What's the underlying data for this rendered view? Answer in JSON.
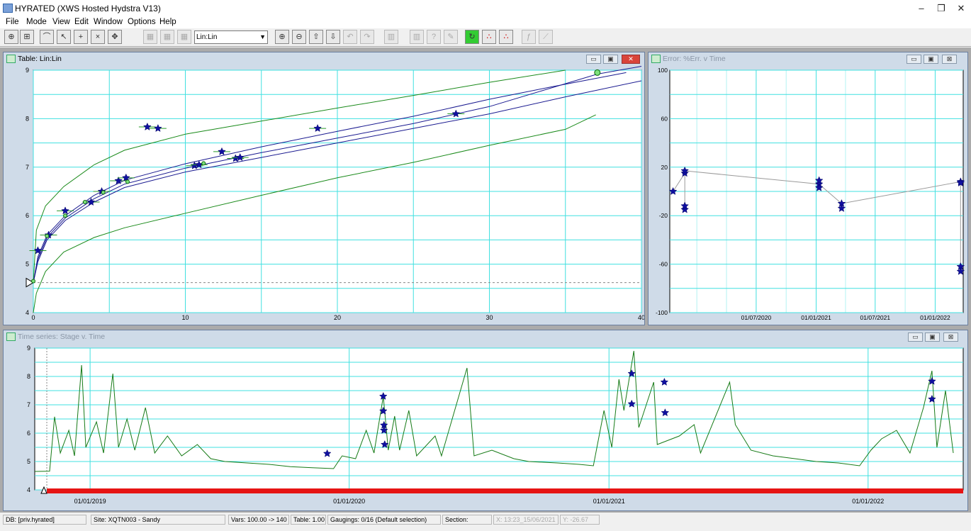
{
  "app": {
    "title": "HYRATED (XWS Hosted Hydstra V13)"
  },
  "window_controls": {
    "minimize": "–",
    "restore": "❐",
    "close": "✕"
  },
  "menu": [
    "File",
    "Mode",
    "View",
    "Edit",
    "Window",
    "Options",
    "Help"
  ],
  "toolbar": {
    "scale_select_value": "Lin:Lin",
    "icons": [
      "zoom-in-icon",
      "zoom-select-icon",
      "draw-curve-icon",
      "select-point-icon",
      "add-point-icon",
      "delete-point-icon",
      "move-point-icon",
      "table-icon",
      "table-2-icon",
      "table-3-icon",
      "magnify-plus-icon",
      "magnify-minus-icon",
      "pan-up-icon",
      "pan-down-icon",
      "undo-icon",
      "redo-icon",
      "grid-icon",
      "grid-2-icon",
      "help-icon",
      "tool-icon",
      "refresh-icon",
      "gaugings-icon",
      "gaugings-2-icon",
      "fit-icon",
      "fit-2-icon"
    ]
  },
  "windows": {
    "rating": {
      "title": "Table: Lin:Lin",
      "min": "▭",
      "max": "▣",
      "close": "✕"
    },
    "error": {
      "title": "Error: %Err. v Time",
      "min": "▭",
      "max": "▣",
      "close": "⊠"
    },
    "timeseries": {
      "title": "Time series: Stage v. Time",
      "min": "▭",
      "max": "▣",
      "close": "⊠"
    }
  },
  "chart_data": [
    {
      "name": "rating",
      "type": "scatter",
      "xticks": [
        "0",
        "10",
        "20",
        "30",
        "40"
      ],
      "yticks": [
        "4",
        "5",
        "6",
        "7",
        "8",
        "9"
      ],
      "xlim": [
        0,
        40
      ],
      "ylim": [
        4,
        9
      ],
      "gaugings": [
        [
          0.3,
          5.28
        ],
        [
          1.0,
          5.6
        ],
        [
          2.1,
          6.1
        ],
        [
          3.8,
          6.28
        ],
        [
          4.5,
          6.5
        ],
        [
          5.6,
          6.72
        ],
        [
          6.1,
          6.78
        ],
        [
          7.5,
          7.83
        ],
        [
          8.2,
          7.8
        ],
        [
          10.6,
          7.03
        ],
        [
          10.9,
          7.05
        ],
        [
          12.4,
          7.32
        ],
        [
          13.3,
          7.18
        ],
        [
          13.6,
          7.2
        ],
        [
          18.7,
          7.8
        ],
        [
          27.8,
          8.1
        ]
      ],
      "control_points": [
        [
          0.0,
          4.65
        ],
        [
          0.9,
          5.58
        ],
        [
          2.1,
          6.0
        ],
        [
          3.4,
          6.28
        ],
        [
          4.6,
          6.48
        ],
        [
          6.2,
          6.7
        ],
        [
          11.2,
          7.08
        ],
        [
          37.1,
          8.95
        ]
      ],
      "rating_curve": [
        [
          0.0,
          4.62
        ],
        [
          0.3,
          5.1
        ],
        [
          0.9,
          5.55
        ],
        [
          2.1,
          5.95
        ],
        [
          4.0,
          6.35
        ],
        [
          6.0,
          6.65
        ],
        [
          10.0,
          6.98
        ],
        [
          15.0,
          7.3
        ],
        [
          20.0,
          7.6
        ],
        [
          25.0,
          7.9
        ],
        [
          30.0,
          8.25
        ],
        [
          37.1,
          8.92
        ],
        [
          40.0,
          9.08
        ]
      ],
      "upper_curve": [
        [
          0.0,
          4.62
        ],
        [
          0.3,
          5.15
        ],
        [
          0.9,
          5.6
        ],
        [
          2.1,
          6.0
        ],
        [
          4.0,
          6.42
        ],
        [
          6.0,
          6.73
        ],
        [
          10.0,
          7.07
        ],
        [
          15.0,
          7.42
        ],
        [
          20.0,
          7.74
        ],
        [
          25.0,
          8.05
        ],
        [
          30.0,
          8.4
        ],
        [
          34.0,
          8.65
        ],
        [
          39.0,
          8.95
        ]
      ],
      "lower_curve": [
        [
          0.0,
          4.62
        ],
        [
          0.3,
          5.05
        ],
        [
          0.9,
          5.5
        ],
        [
          2.1,
          5.9
        ],
        [
          4.0,
          6.28
        ],
        [
          6.0,
          6.58
        ],
        [
          10.0,
          6.9
        ],
        [
          15.0,
          7.2
        ],
        [
          20.0,
          7.5
        ],
        [
          25.0,
          7.8
        ],
        [
          30.0,
          8.1
        ],
        [
          35.0,
          8.45
        ],
        [
          40.0,
          8.78
        ]
      ],
      "outer_upper": [
        [
          0.0,
          4.62
        ],
        [
          0.2,
          5.7
        ],
        [
          0.8,
          6.2
        ],
        [
          2.0,
          6.6
        ],
        [
          4.0,
          7.05
        ],
        [
          6.0,
          7.35
        ],
        [
          10.0,
          7.68
        ],
        [
          15.0,
          7.95
        ],
        [
          20.0,
          8.22
        ],
        [
          25.0,
          8.48
        ],
        [
          30.0,
          8.75
        ],
        [
          35.0,
          9.0
        ]
      ],
      "outer_lower": [
        [
          0.0,
          4.0
        ],
        [
          0.2,
          4.4
        ],
        [
          0.8,
          4.85
        ],
        [
          2.0,
          5.25
        ],
        [
          4.0,
          5.55
        ],
        [
          6.0,
          5.75
        ],
        [
          10.0,
          6.05
        ],
        [
          15.0,
          6.42
        ],
        [
          20.0,
          6.78
        ],
        [
          25.0,
          7.1
        ],
        [
          30.0,
          7.45
        ],
        [
          35.0,
          7.78
        ],
        [
          37.0,
          8.08
        ]
      ],
      "reference_level": 4.62
    },
    {
      "name": "error",
      "type": "line",
      "xticks": [
        "01/07/2020",
        "01/01/2021",
        "01/07/2021",
        "01/01/2022"
      ],
      "yticks": [
        "100",
        "60",
        "20",
        "-20",
        "-60",
        "-100"
      ],
      "ylim": [
        -100,
        100
      ],
      "points": [
        [
          "2019-10-20",
          0
        ],
        [
          "2019-11-25",
          15
        ],
        [
          "2019-11-25",
          -15
        ],
        [
          "2019-11-25",
          -12
        ],
        [
          "2019-11-25",
          17
        ],
        [
          "2021-01-10",
          6
        ],
        [
          "2021-01-10",
          3
        ],
        [
          "2021-01-10",
          9
        ],
        [
          "2021-03-20",
          -10
        ],
        [
          "2021-03-20",
          -14
        ],
        [
          "2022-03-20",
          8
        ],
        [
          "2022-03-20",
          7
        ],
        [
          "2022-03-20",
          -62
        ],
        [
          "2022-03-20",
          -66
        ]
      ]
    },
    {
      "name": "timeseries",
      "type": "line",
      "xticks": [
        "01/01/2019",
        "01/01/2020",
        "01/01/2021",
        "01/01/2022"
      ],
      "yticks": [
        "4",
        "5",
        "6",
        "7",
        "8",
        "9"
      ],
      "ylim": [
        4,
        9
      ],
      "x_start": "2018-10-15",
      "x_end": "2022-05-15",
      "stage_series": [
        [
          "2018-10-15",
          4.65
        ],
        [
          "2018-11-05",
          4.66
        ],
        [
          "2018-11-12",
          6.58
        ],
        [
          "2018-11-20",
          5.3
        ],
        [
          "2018-12-02",
          6.1
        ],
        [
          "2018-12-10",
          5.2
        ],
        [
          "2018-12-20",
          8.4
        ],
        [
          "2018-12-26",
          5.5
        ],
        [
          "2019-01-10",
          6.4
        ],
        [
          "2019-01-20",
          5.3
        ],
        [
          "2019-02-02",
          8.1
        ],
        [
          "2019-02-10",
          5.5
        ],
        [
          "2019-02-22",
          6.5
        ],
        [
          "2019-03-05",
          5.4
        ],
        [
          "2019-03-20",
          6.9
        ],
        [
          "2019-04-02",
          5.3
        ],
        [
          "2019-04-20",
          5.9
        ],
        [
          "2019-05-10",
          5.2
        ],
        [
          "2019-06-01",
          5.6
        ],
        [
          "2019-06-20",
          5.1
        ],
        [
          "2019-07-10",
          5.0
        ],
        [
          "2019-08-10",
          4.95
        ],
        [
          "2019-09-10",
          4.9
        ],
        [
          "2019-10-10",
          4.82
        ],
        [
          "2019-11-10",
          4.78
        ],
        [
          "2019-12-10",
          4.75
        ],
        [
          "2019-12-22",
          5.2
        ],
        [
          "2020-01-10",
          5.1
        ],
        [
          "2020-01-25",
          6.1
        ],
        [
          "2020-02-05",
          5.3
        ],
        [
          "2020-02-18",
          7.3
        ],
        [
          "2020-02-25",
          5.4
        ],
        [
          "2020-03-05",
          6.6
        ],
        [
          "2020-03-12",
          5.4
        ],
        [
          "2020-03-25",
          6.8
        ],
        [
          "2020-04-05",
          5.2
        ],
        [
          "2020-05-01",
          5.9
        ],
        [
          "2020-05-10",
          5.2
        ],
        [
          "2020-06-15",
          8.3
        ],
        [
          "2020-06-25",
          5.2
        ],
        [
          "2020-07-20",
          5.4
        ],
        [
          "2020-08-20",
          5.1
        ],
        [
          "2020-09-10",
          5.0
        ],
        [
          "2020-10-20",
          4.95
        ],
        [
          "2020-11-20",
          4.9
        ],
        [
          "2020-12-10",
          4.85
        ],
        [
          "2020-12-25",
          6.8
        ],
        [
          "2021-01-05",
          5.5
        ],
        [
          "2021-01-15",
          7.9
        ],
        [
          "2021-01-22",
          6.8
        ],
        [
          "2021-02-05",
          8.9
        ],
        [
          "2021-02-12",
          6.2
        ],
        [
          "2021-03-05",
          7.8
        ],
        [
          "2021-03-10",
          5.6
        ],
        [
          "2021-04-10",
          5.9
        ],
        [
          "2021-05-01",
          6.3
        ],
        [
          "2021-05-10",
          5.3
        ],
        [
          "2021-06-20",
          7.8
        ],
        [
          "2021-06-28",
          6.3
        ],
        [
          "2021-07-20",
          5.4
        ],
        [
          "2021-08-20",
          5.2
        ],
        [
          "2021-09-20",
          5.1
        ],
        [
          "2021-10-20",
          5.0
        ],
        [
          "2021-11-20",
          4.95
        ],
        [
          "2021-12-20",
          4.85
        ],
        [
          "2022-01-05",
          5.4
        ],
        [
          "2022-01-20",
          5.8
        ],
        [
          "2022-02-10",
          6.1
        ],
        [
          "2022-03-01",
          5.3
        ],
        [
          "2022-03-20",
          6.9
        ],
        [
          "2022-04-01",
          8.2
        ],
        [
          "2022-04-08",
          5.5
        ],
        [
          "2022-04-20",
          7.5
        ],
        [
          "2022-05-01",
          5.3
        ]
      ],
      "gaugings": [
        [
          "2019-12-01",
          5.28
        ],
        [
          "2020-02-18",
          7.3
        ],
        [
          "2020-02-18",
          6.78
        ],
        [
          "2020-02-19",
          6.28
        ],
        [
          "2020-02-19",
          6.1
        ],
        [
          "2020-02-20",
          5.6
        ],
        [
          "2021-02-02",
          8.1
        ],
        [
          "2021-02-02",
          7.03
        ],
        [
          "2021-03-20",
          7.8
        ],
        [
          "2021-03-21",
          6.72
        ],
        [
          "2022-04-01",
          7.83
        ],
        [
          "2022-04-01",
          7.2
        ]
      ]
    }
  ],
  "status": {
    "db": "DB: [priv.hyrated]",
    "site": "Site: XQTN003 - Sandy",
    "vars": "Vars: 100.00 -> 140",
    "table": "Table: 1.00",
    "gaugings": "Gaugings: 0/16 (Default selection)",
    "section": "Section:",
    "x": "X: 13:23_15/06/2021",
    "y": "Y: -26.67"
  }
}
